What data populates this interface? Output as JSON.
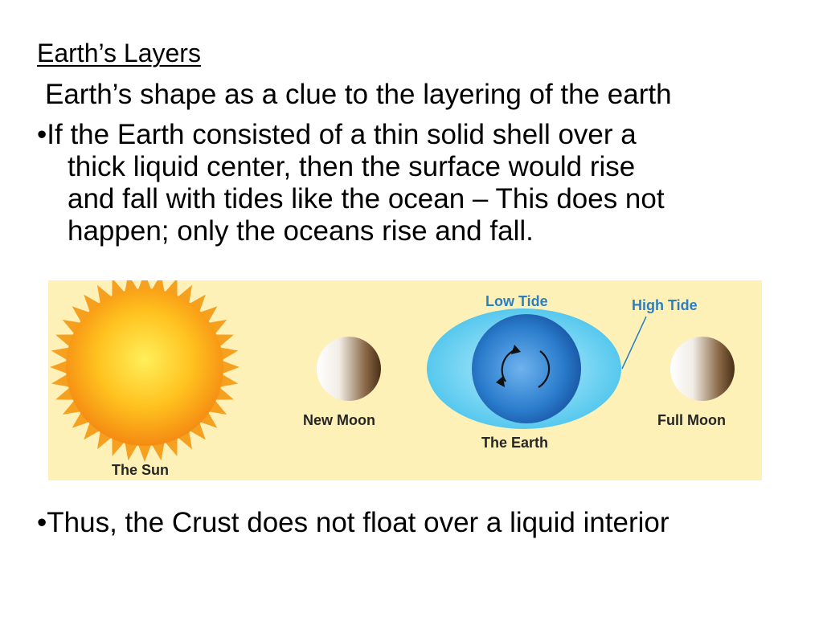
{
  "slide": {
    "title": "Earth’s Layers",
    "subtitle": "Earth’s shape as a clue to the layering of the earth",
    "bullet_marker": "•",
    "bullet1_lines": [
      "If the Earth consisted of a thin solid shell over a",
      "thick liquid center, then the surface would rise",
      "and fall with tides like the ocean – This does not",
      "happen; only the oceans rise and fall."
    ],
    "bullet2": "Thus, the Crust does not float over a liquid interior"
  },
  "diagram": {
    "labels": {
      "sun": "The Sun",
      "new_moon": "New Moon",
      "earth": "The Earth",
      "full_moon": "Full Moon",
      "low_tide": "Low Tide",
      "high_tide": "High Tide"
    },
    "colors": {
      "background": "#fdf1b8",
      "sun_outer": "#f7a21b",
      "sun_inner": "#ffe64d",
      "ocean_bulge": "#5ccbef",
      "earth": "#1f6fc4",
      "moon_light": "#ffffff",
      "moon_dark": "#5a3a1e",
      "label_blue": "#2a7fc4"
    }
  }
}
